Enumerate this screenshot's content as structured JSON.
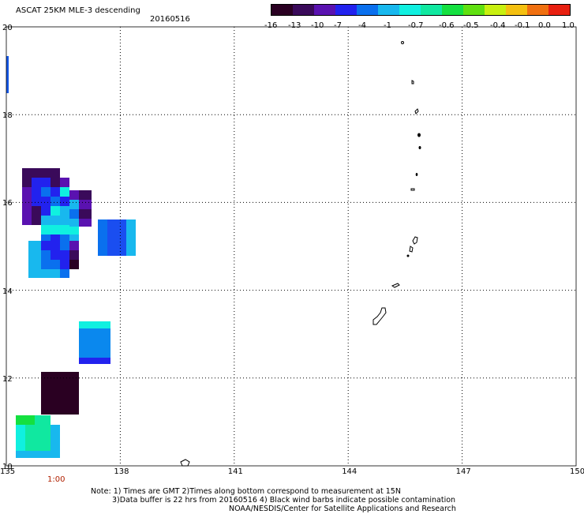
{
  "header": {
    "title": "ASCAT 25KM MLE-3 descending",
    "date": "20160516"
  },
  "colorbar": {
    "ticks": [
      "-16",
      "-13",
      "-10",
      "-7",
      "-4",
      "-1",
      "-0.7",
      "-0.6",
      "-0.5",
      "-0.4",
      "-0.1",
      "0.0",
      "1.0"
    ],
    "colors": [
      "#2a0022",
      "#3a0a5a",
      "#5a12b0",
      "#2222ee",
      "#0a70ee",
      "#18b8ee",
      "#10f0e0",
      "#10e8a0",
      "#14e040",
      "#60e010",
      "#c8f010",
      "#f4c010",
      "#f07010",
      "#e82010"
    ]
  },
  "map": {
    "lon_ticks": [
      "135",
      "138",
      "141",
      "144",
      "147",
      "150"
    ],
    "lat_ticks": [
      "20",
      "18",
      "16",
      "14",
      "12",
      "10"
    ],
    "lon_range": [
      135,
      150
    ],
    "lat_range": [
      10,
      20
    ],
    "time_label": "1:00",
    "time_label_color": "#b02000"
  },
  "notes": {
    "line1": "Note: 1) Times are GMT 2)Times along bottom correspond to measurement at 15N",
    "line2": "3)Data buffer is 22 hrs from 20160516 4) Black wind barbs indicate possible contamination",
    "line3": "NOAA/NESDIS/Center for Satellite Applications and Research"
  }
}
